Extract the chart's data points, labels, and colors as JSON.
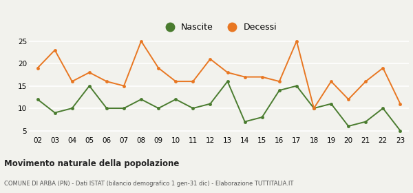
{
  "years": [
    "02",
    "03",
    "04",
    "05",
    "06",
    "07",
    "08",
    "09",
    "10",
    "11",
    "12",
    "13",
    "14",
    "15",
    "16",
    "17",
    "18",
    "19",
    "20",
    "21",
    "22",
    "23"
  ],
  "nascite": [
    12,
    9,
    10,
    15,
    10,
    10,
    12,
    10,
    12,
    10,
    11,
    16,
    7,
    8,
    14,
    15,
    10,
    11,
    6,
    7,
    10,
    5
  ],
  "decessi": [
    19,
    23,
    16,
    18,
    16,
    15,
    25,
    19,
    16,
    16,
    21,
    18,
    17,
    17,
    16,
    25,
    10,
    16,
    12,
    16,
    19,
    11
  ],
  "nascite_color": "#4a7c2f",
  "decessi_color": "#e87722",
  "title": "Movimento naturale della popolazione",
  "subtitle": "COMUNE DI ARBA (PN) - Dati ISTAT (bilancio demografico 1 gen-31 dic) - Elaborazione TUTTITALIA.IT",
  "legend_nascite": "Nascite",
  "legend_decessi": "Decessi",
  "ylim": [
    4,
    26
  ],
  "yticks": [
    5,
    10,
    15,
    20,
    25
  ],
  "bg_color": "#f2f2ed"
}
